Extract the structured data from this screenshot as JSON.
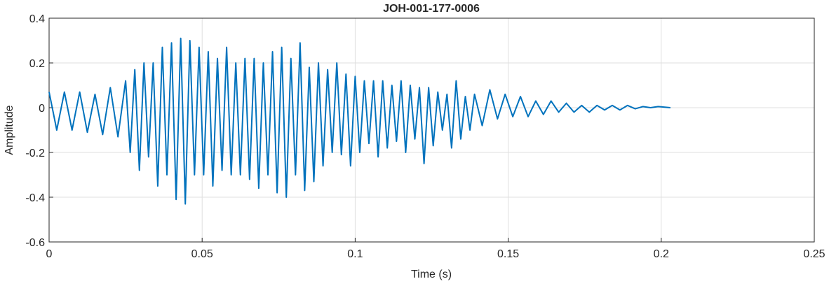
{
  "chart_data": {
    "type": "line",
    "title": "JOH-001-177-0006",
    "x_label": "Time (s)",
    "y_label": "Amplitude",
    "color": "#0072bd",
    "grid": true,
    "xlim": [
      0,
      0.25
    ],
    "xticks": [
      0,
      0.05,
      0.1,
      0.15,
      0.2,
      0.25
    ],
    "ylim": [
      -0.6,
      0.4
    ],
    "yticks": [
      -0.6,
      -0.4,
      -0.2,
      0,
      0.2,
      0.4
    ],
    "x": [
      0,
      0.0025,
      0.005,
      0.0075,
      0.01,
      0.0125,
      0.015,
      0.0175,
      0.02,
      0.0225,
      0.025,
      0.0265,
      0.028,
      0.0295,
      0.031,
      0.0325,
      0.034,
      0.0355,
      0.037,
      0.0385,
      0.04,
      0.0415,
      0.043,
      0.0445,
      0.046,
      0.0475,
      0.049,
      0.0505,
      0.052,
      0.0535,
      0.055,
      0.0565,
      0.058,
      0.0595,
      0.061,
      0.0625,
      0.064,
      0.0655,
      0.067,
      0.0685,
      0.07,
      0.0715,
      0.073,
      0.0745,
      0.076,
      0.0775,
      0.079,
      0.0805,
      0.082,
      0.0835,
      0.085,
      0.0865,
      0.088,
      0.0895,
      0.091,
      0.0925,
      0.094,
      0.0955,
      0.097,
      0.0985,
      0.1,
      0.1015,
      0.103,
      0.1045,
      0.106,
      0.1075,
      0.109,
      0.1105,
      0.112,
      0.1135,
      0.115,
      0.1165,
      0.118,
      0.1195,
      0.121,
      0.1225,
      0.124,
      0.1255,
      0.127,
      0.1285,
      0.13,
      0.1315,
      0.133,
      0.1345,
      0.136,
      0.1375,
      0.139,
      0.1415,
      0.144,
      0.1465,
      0.149,
      0.1515,
      0.154,
      0.1565,
      0.159,
      0.1615,
      0.164,
      0.1665,
      0.169,
      0.1715,
      0.174,
      0.1765,
      0.179,
      0.1815,
      0.184,
      0.1865,
      0.189,
      0.1915,
      0.194,
      0.1965,
      0.199,
      0.203
    ],
    "values": [
      0.07,
      -0.1,
      0.07,
      -0.1,
      0.07,
      -0.11,
      0.06,
      -0.12,
      0.09,
      -0.13,
      0.12,
      -0.2,
      0.17,
      -0.28,
      0.2,
      -0.22,
      0.2,
      -0.35,
      0.27,
      -0.3,
      0.29,
      -0.41,
      0.31,
      -0.43,
      0.3,
      -0.3,
      0.27,
      -0.3,
      0.25,
      -0.35,
      0.22,
      -0.28,
      0.27,
      -0.3,
      0.2,
      -0.3,
      0.22,
      -0.32,
      0.22,
      -0.36,
      0.2,
      -0.3,
      0.25,
      -0.38,
      0.27,
      -0.4,
      0.22,
      -0.3,
      0.29,
      -0.37,
      0.18,
      -0.33,
      0.2,
      -0.26,
      0.17,
      -0.2,
      0.2,
      -0.21,
      0.15,
      -0.26,
      0.14,
      -0.2,
      0.12,
      -0.16,
      0.12,
      -0.22,
      0.12,
      -0.18,
      0.1,
      -0.15,
      0.12,
      -0.2,
      0.1,
      -0.14,
      0.09,
      -0.25,
      0.09,
      -0.17,
      0.07,
      -0.1,
      0.06,
      -0.18,
      0.12,
      -0.14,
      0.05,
      -0.1,
      0.06,
      -0.08,
      0.08,
      -0.05,
      0.06,
      -0.04,
      0.05,
      -0.04,
      0.03,
      -0.03,
      0.03,
      -0.02,
      0.02,
      -0.02,
      0.01,
      -0.02,
      0.01,
      -0.01,
      0.01,
      -0.01,
      0.01,
      -0.005,
      0.005,
      0,
      0.005,
      0
    ]
  }
}
